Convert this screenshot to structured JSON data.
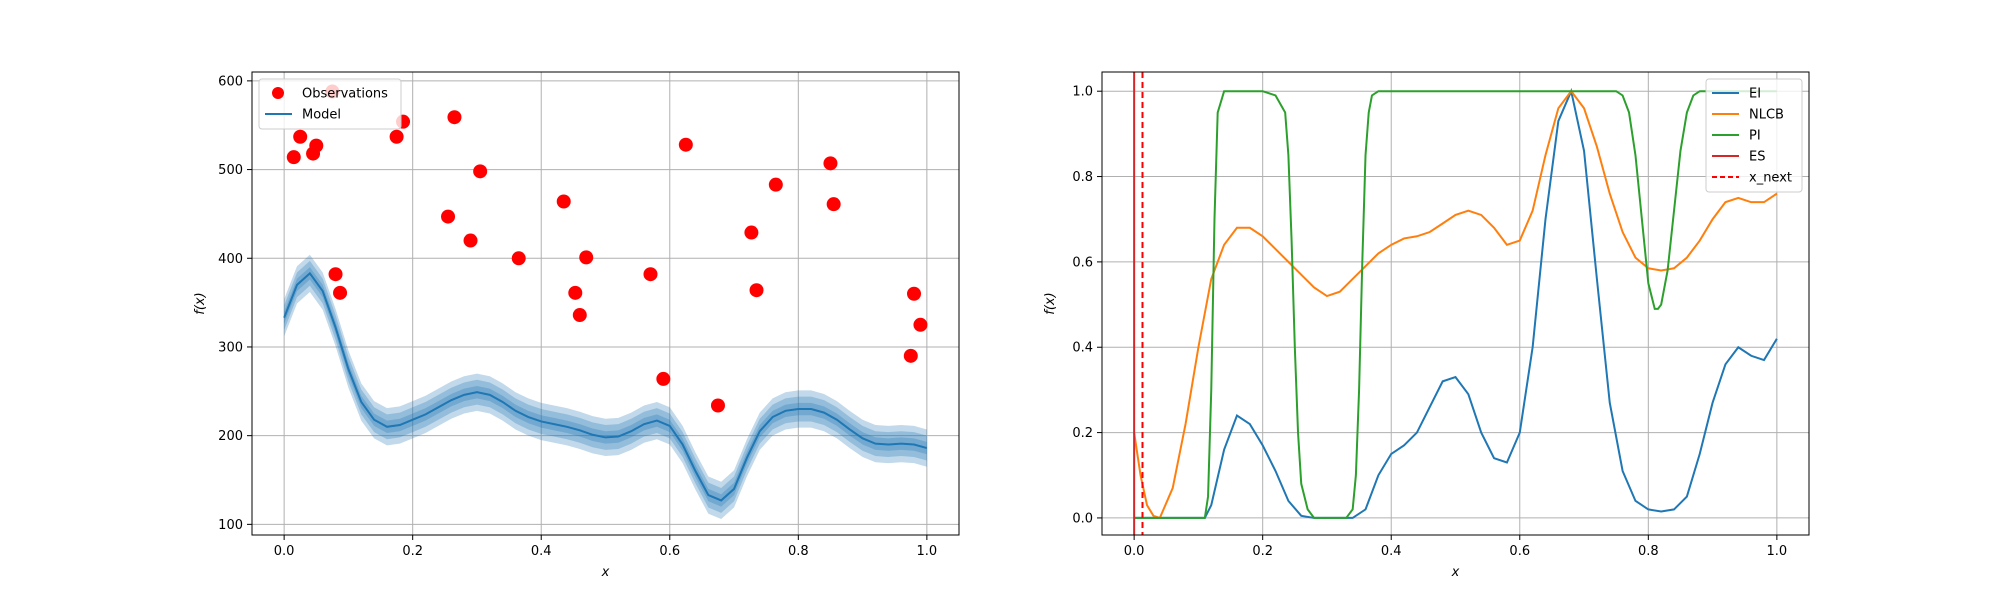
{
  "chart_data": [
    {
      "type": "line",
      "ylabel": "f(x)",
      "xlabel": "x",
      "xlim": [
        -0.05,
        1.05
      ],
      "ylim": [
        88,
        610
      ],
      "xticks": [
        0.0,
        0.2,
        0.4,
        0.6,
        0.8,
        1.0
      ],
      "xtick_labels": [
        "0.0",
        "0.2",
        "0.4",
        "0.6",
        "0.8",
        "1.0"
      ],
      "yticks": [
        100,
        200,
        300,
        400,
        500,
        600
      ],
      "ytick_labels": [
        "100",
        "200",
        "300",
        "400",
        "500",
        "600"
      ],
      "grid": true,
      "legend_position": "top-left",
      "legend": [
        "Observations",
        "Model"
      ],
      "colors": {
        "observations": "#ff0000",
        "model": "#1f77b4"
      },
      "band_widths": [
        7,
        14,
        21
      ],
      "observations": {
        "name": "Observations",
        "x": [
          0.015,
          0.025,
          0.045,
          0.05,
          0.075,
          0.08,
          0.087,
          0.175,
          0.185,
          0.255,
          0.265,
          0.29,
          0.305,
          0.365,
          0.435,
          0.453,
          0.46,
          0.47,
          0.57,
          0.59,
          0.625,
          0.675,
          0.727,
          0.735,
          0.765,
          0.85,
          0.855,
          0.975,
          0.98,
          0.99
        ],
        "y": [
          514,
          537,
          518,
          527,
          588,
          382,
          361,
          537,
          554,
          447,
          559,
          420,
          498,
          400,
          464,
          361,
          336,
          401,
          382,
          264,
          528,
          234,
          429,
          364,
          483,
          507,
          461,
          290,
          360,
          325
        ]
      },
      "model": {
        "name": "Model",
        "x": [
          0.0,
          0.02,
          0.04,
          0.06,
          0.08,
          0.1,
          0.12,
          0.14,
          0.16,
          0.18,
          0.2,
          0.22,
          0.24,
          0.26,
          0.28,
          0.3,
          0.32,
          0.34,
          0.36,
          0.38,
          0.4,
          0.42,
          0.44,
          0.46,
          0.48,
          0.5,
          0.52,
          0.54,
          0.56,
          0.58,
          0.6,
          0.62,
          0.64,
          0.66,
          0.68,
          0.7,
          0.72,
          0.74,
          0.76,
          0.78,
          0.8,
          0.82,
          0.84,
          0.86,
          0.88,
          0.9,
          0.92,
          0.94,
          0.96,
          0.98,
          1.0
        ],
        "y": [
          333,
          370,
          383,
          363,
          322,
          275,
          238,
          218,
          210,
          212,
          218,
          224,
          232,
          240,
          246,
          249,
          246,
          238,
          228,
          221,
          216,
          213,
          210,
          206,
          201,
          198,
          199,
          205,
          213,
          217,
          211,
          190,
          160,
          133,
          127,
          140,
          175,
          205,
          221,
          228,
          230,
          230,
          226,
          218,
          207,
          197,
          191,
          190,
          191,
          190,
          186
        ]
      }
    },
    {
      "type": "line",
      "ylabel": "f(x)",
      "xlabel": "x",
      "xlim": [
        -0.05,
        1.05
      ],
      "ylim": [
        -0.04,
        1.045
      ],
      "xticks": [
        0.0,
        0.2,
        0.4,
        0.6,
        0.8,
        1.0
      ],
      "xtick_labels": [
        "0.0",
        "0.2",
        "0.4",
        "0.6",
        "0.8",
        "1.0"
      ],
      "yticks": [
        0.0,
        0.2,
        0.4,
        0.6,
        0.8,
        1.0
      ],
      "ytick_labels": [
        "0.0",
        "0.2",
        "0.4",
        "0.6",
        "0.8",
        "1.0"
      ],
      "grid": true,
      "legend_position": "top-right",
      "legend": [
        "EI",
        "NLCB",
        "PI",
        "ES",
        "x_next"
      ],
      "x_next": 0.013,
      "series": [
        {
          "name": "EI",
          "color": "#1f77b4",
          "x": [
            0.0,
            0.11,
            0.12,
            0.14,
            0.16,
            0.18,
            0.2,
            0.22,
            0.24,
            0.26,
            0.28,
            0.3,
            0.32,
            0.34,
            0.36,
            0.38,
            0.4,
            0.42,
            0.44,
            0.46,
            0.48,
            0.5,
            0.52,
            0.54,
            0.56,
            0.58,
            0.6,
            0.62,
            0.64,
            0.66,
            0.68,
            0.7,
            0.72,
            0.74,
            0.76,
            0.78,
            0.8,
            0.82,
            0.84,
            0.86,
            0.88,
            0.9,
            0.92,
            0.94,
            0.96,
            0.98,
            1.0
          ],
          "y": [
            0.0,
            0.0,
            0.03,
            0.16,
            0.24,
            0.22,
            0.17,
            0.11,
            0.04,
            0.005,
            0.0,
            0.0,
            0.0,
            0.0,
            0.02,
            0.1,
            0.15,
            0.17,
            0.2,
            0.26,
            0.32,
            0.33,
            0.29,
            0.2,
            0.14,
            0.13,
            0.2,
            0.4,
            0.7,
            0.93,
            1.0,
            0.86,
            0.56,
            0.27,
            0.11,
            0.04,
            0.02,
            0.015,
            0.02,
            0.05,
            0.15,
            0.27,
            0.36,
            0.4,
            0.38,
            0.37,
            0.42
          ]
        },
        {
          "name": "NLCB",
          "color": "#ff7f0e",
          "x": [
            0.0,
            0.01,
            0.02,
            0.03,
            0.04,
            0.06,
            0.08,
            0.1,
            0.12,
            0.14,
            0.16,
            0.18,
            0.2,
            0.22,
            0.24,
            0.26,
            0.28,
            0.3,
            0.32,
            0.34,
            0.36,
            0.38,
            0.4,
            0.42,
            0.44,
            0.46,
            0.48,
            0.5,
            0.52,
            0.54,
            0.56,
            0.58,
            0.6,
            0.62,
            0.64,
            0.66,
            0.68,
            0.7,
            0.72,
            0.74,
            0.76,
            0.78,
            0.8,
            0.82,
            0.84,
            0.86,
            0.88,
            0.9,
            0.92,
            0.94,
            0.96,
            0.98,
            1.0
          ],
          "y": [
            0.2,
            0.1,
            0.03,
            0.005,
            0.0,
            0.07,
            0.22,
            0.4,
            0.56,
            0.64,
            0.68,
            0.68,
            0.66,
            0.63,
            0.6,
            0.57,
            0.54,
            0.52,
            0.53,
            0.56,
            0.59,
            0.62,
            0.64,
            0.655,
            0.66,
            0.67,
            0.69,
            0.71,
            0.72,
            0.71,
            0.68,
            0.64,
            0.65,
            0.72,
            0.85,
            0.96,
            1.0,
            0.96,
            0.87,
            0.76,
            0.67,
            0.61,
            0.585,
            0.58,
            0.585,
            0.61,
            0.65,
            0.7,
            0.74,
            0.75,
            0.74,
            0.74,
            0.76
          ]
        },
        {
          "name": "PI",
          "color": "#2ca02c",
          "x": [
            0.0,
            0.11,
            0.115,
            0.12,
            0.125,
            0.13,
            0.14,
            0.16,
            0.2,
            0.22,
            0.235,
            0.24,
            0.245,
            0.25,
            0.255,
            0.26,
            0.27,
            0.28,
            0.3,
            0.33,
            0.34,
            0.345,
            0.35,
            0.355,
            0.36,
            0.365,
            0.37,
            0.38,
            0.4,
            0.75,
            0.76,
            0.77,
            0.78,
            0.79,
            0.8,
            0.81,
            0.815,
            0.82,
            0.83,
            0.84,
            0.85,
            0.86,
            0.87,
            0.88,
            0.9,
            1.0
          ],
          "y": [
            0.0,
            0.0,
            0.05,
            0.3,
            0.7,
            0.95,
            1.0,
            1.0,
            1.0,
            0.99,
            0.95,
            0.85,
            0.65,
            0.4,
            0.2,
            0.08,
            0.02,
            0.0,
            0.0,
            0.0,
            0.02,
            0.1,
            0.3,
            0.6,
            0.85,
            0.95,
            0.99,
            1.0,
            1.0,
            1.0,
            0.99,
            0.95,
            0.85,
            0.7,
            0.55,
            0.49,
            0.49,
            0.5,
            0.58,
            0.72,
            0.86,
            0.95,
            0.99,
            1.0,
            1.0,
            1.0
          ]
        },
        {
          "name": "ES",
          "color": "#d62728",
          "x": [
            0.0,
            0.0
          ],
          "y": [
            -0.04,
            1.045
          ]
        }
      ]
    }
  ]
}
